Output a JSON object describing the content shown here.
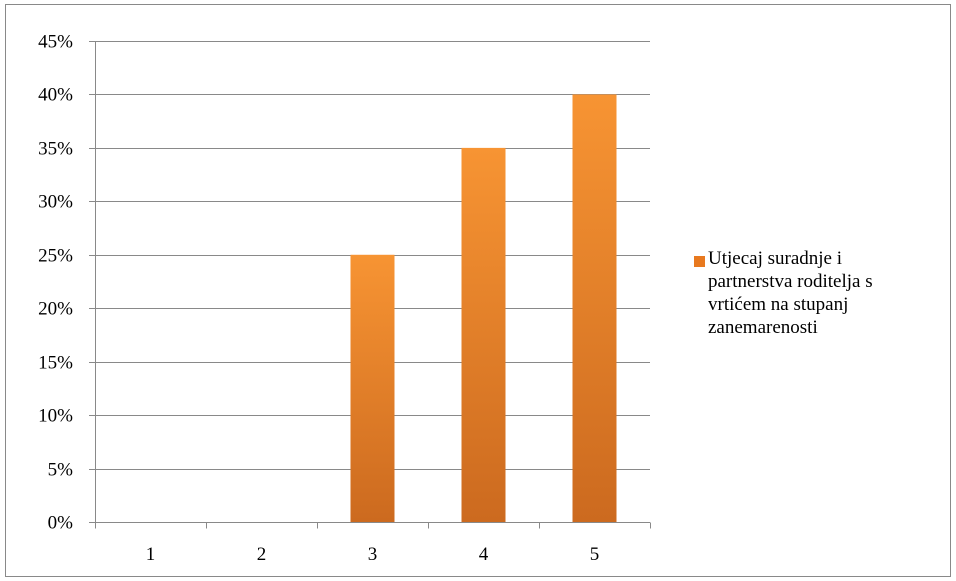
{
  "chart_data": {
    "type": "bar",
    "categories": [
      "1",
      "2",
      "3",
      "4",
      "5"
    ],
    "series": [
      {
        "name": "Utjecaj suradnje i partnerstva roditelja s vrtićem na stupanj zanemarenosti",
        "values": [
          0,
          0,
          25,
          35,
          40
        ]
      }
    ],
    "ylim": [
      0,
      45
    ],
    "ytick_step": 5,
    "y_unit": "%",
    "ytick_labels": [
      "0%",
      "5%",
      "10%",
      "15%",
      "20%",
      "25%",
      "30%",
      "35%",
      "40%",
      "45%"
    ],
    "grid": true,
    "legend_position": "right",
    "title": "",
    "xlabel": "",
    "ylabel": "",
    "colors": {
      "bar_top": "#F79433",
      "bar_bottom": "#CC6A1F",
      "gridline": "#898989",
      "axis": "#898989",
      "legend_swatch": "#E8791F"
    }
  }
}
